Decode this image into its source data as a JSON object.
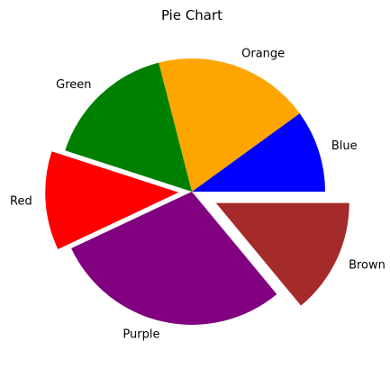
{
  "chart_data": {
    "type": "pie",
    "title": "Pie Chart",
    "slices": [
      {
        "label": "Blue",
        "value": 10,
        "color": "#0000ff",
        "explode": 0
      },
      {
        "label": "Orange",
        "value": 19,
        "color": "#ffa500",
        "explode": 0
      },
      {
        "label": "Green",
        "value": 16,
        "color": "#008000",
        "explode": 0
      },
      {
        "label": "Red",
        "value": 12,
        "color": "#ff0000",
        "explode": 0.1
      },
      {
        "label": "Purple",
        "value": 29,
        "color": "#800080",
        "explode": 0
      },
      {
        "label": "Brown",
        "value": 14,
        "color": "#a52a2a",
        "explode": 0.2
      }
    ],
    "start_angle": 0,
    "direction": "counterclockwise",
    "legend": false
  }
}
